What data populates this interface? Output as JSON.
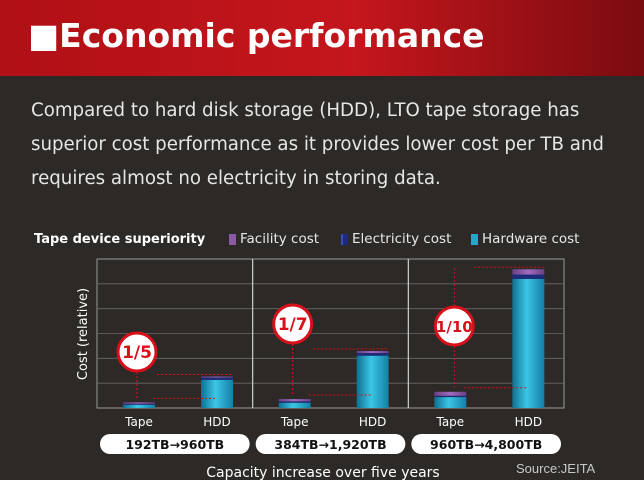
{
  "header": {
    "title": "■Economic performance"
  },
  "intro": {
    "text": "Compared to hard disk storage (HDD), LTO tape storage has superior cost performance as it provides lower cost per TB and requires almost no electricity in storing data."
  },
  "source": "Source:JEITA",
  "colors": {
    "banner": "#c4161c",
    "background": "#2d2926",
    "facility": "#8a5aa6",
    "electricity": "#1c2c7a",
    "hardware": "#2aa3c8",
    "callout": "#d7101a"
  },
  "chart_data": {
    "type": "bar",
    "title": "Tape device superiority",
    "ylabel": "Cost (relative)",
    "xlabel": "Capacity increase over five years",
    "legend": [
      "Facility cost",
      "Electricity cost",
      "Hardware cost"
    ],
    "legend_position": "top-right",
    "grid": true,
    "groups": [
      {
        "capacity_label": "192TB→960TB",
        "ratio_label": "1/5",
        "bars": [
          {
            "label": "Tape",
            "hardware": 1.0,
            "electricity": 0.3,
            "facility": 0.4
          },
          {
            "label": "HDD",
            "hardware": 8.5,
            "electricity": 0.7,
            "facility": 0.3
          }
        ]
      },
      {
        "capacity_label": "384TB→1,920TB",
        "ratio_label": "1/7",
        "bars": [
          {
            "label": "Tape",
            "hardware": 1.6,
            "electricity": 0.4,
            "facility": 0.7
          },
          {
            "label": "HDD",
            "hardware": 15.8,
            "electricity": 0.8,
            "facility": 0.6
          }
        ]
      },
      {
        "capacity_label": "960TB→4,800TB",
        "ratio_label": "1/10",
        "bars": [
          {
            "label": "Tape",
            "hardware": 3.3,
            "electricity": 0.4,
            "facility": 1.2
          },
          {
            "label": "HDD",
            "hardware": 39.0,
            "electricity": 1.3,
            "facility": 1.6
          }
        ]
      }
    ],
    "ylim": [
      0,
      45
    ]
  }
}
